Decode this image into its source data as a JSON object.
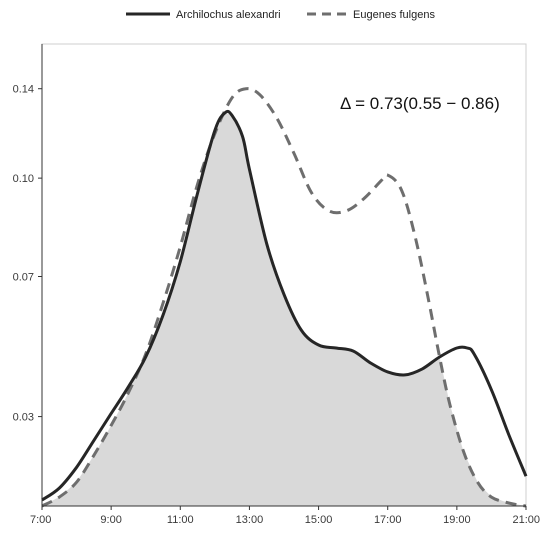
{
  "chart_data": {
    "type": "line",
    "title": "",
    "xlabel": "",
    "ylabel": "",
    "x_ticks": [
      "7:00",
      "9:00",
      "11:00",
      "13:00",
      "15:00",
      "17:00",
      "19:00",
      "21:00"
    ],
    "y_ticks": [
      "0.03",
      "0.07",
      "0.10",
      "0.14"
    ],
    "xlim": [
      7,
      21
    ],
    "ylim": [
      0,
      0.155
    ],
    "legend_position": "top",
    "annotation": "Δ = 0.73(0.55 − 0.86)",
    "overlap_fill_color": "#d9d9d9",
    "series": [
      {
        "name": "Archilochus alexandri",
        "line_style": "solid",
        "color": "#262626",
        "x": [
          7.0,
          7.5,
          8.0,
          8.5,
          9.0,
          9.5,
          10.0,
          10.5,
          11.0,
          11.5,
          12.0,
          12.3,
          12.5,
          12.8,
          13.0,
          13.5,
          14.0,
          14.5,
          15.0,
          15.5,
          16.0,
          16.5,
          17.0,
          17.5,
          18.0,
          18.5,
          19.0,
          19.3,
          19.5,
          20.0,
          20.5,
          21.0
        ],
        "y": [
          0.002,
          0.006,
          0.013,
          0.022,
          0.031,
          0.04,
          0.05,
          0.064,
          0.082,
          0.105,
          0.126,
          0.132,
          0.131,
          0.124,
          0.113,
          0.088,
          0.071,
          0.059,
          0.054,
          0.053,
          0.052,
          0.048,
          0.045,
          0.044,
          0.046,
          0.05,
          0.053,
          0.053,
          0.051,
          0.039,
          0.024,
          0.01
        ]
      },
      {
        "name": "Eugenes fulgens",
        "line_style": "dashed",
        "color": "#6e6e6e",
        "x": [
          7.0,
          7.5,
          8.0,
          8.5,
          9.0,
          9.5,
          10.0,
          10.5,
          11.0,
          11.5,
          12.0,
          12.5,
          12.9,
          13.3,
          13.8,
          14.3,
          14.8,
          15.3,
          15.8,
          16.3,
          16.8,
          17.0,
          17.4,
          17.8,
          18.2,
          18.5,
          18.8,
          19.2,
          19.6,
          20.0,
          20.5,
          21.0
        ],
        "y": [
          0.0,
          0.003,
          0.008,
          0.017,
          0.027,
          0.038,
          0.051,
          0.068,
          0.087,
          0.108,
          0.125,
          0.137,
          0.14,
          0.138,
          0.13,
          0.118,
          0.105,
          0.099,
          0.099,
          0.103,
          0.109,
          0.111,
          0.106,
          0.09,
          0.068,
          0.05,
          0.034,
          0.018,
          0.008,
          0.003,
          0.001,
          0.0
        ]
      }
    ]
  }
}
